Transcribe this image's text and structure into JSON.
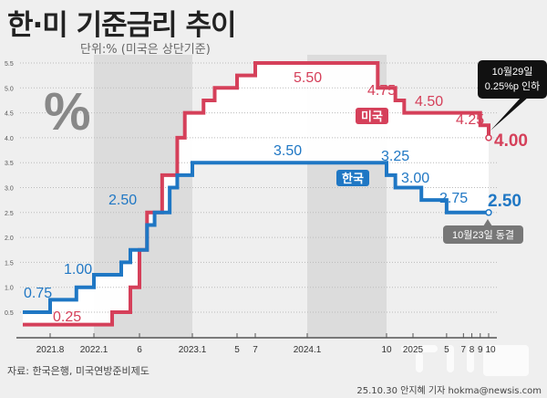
{
  "title": "한·미 기준금리 추이",
  "unit_note": "단위:% (미국은 상단기준)",
  "source": "자료: 한국은행, 미국연방준비제도",
  "credit": "25.10.30 안지혜 기자 hokma@newsis.com",
  "watermark": "뉴시스",
  "chart_data": {
    "type": "line",
    "step": true,
    "ylim": [
      0,
      5.5
    ],
    "yticks": [
      0.5,
      1.0,
      1.5,
      2.0,
      2.5,
      3.0,
      3.5,
      4.0,
      4.5,
      5.0,
      5.5
    ],
    "xtick_labels": [
      {
        "month": "2021.08",
        "label": "2021.8"
      },
      {
        "month": "2022.01",
        "label": "2022.1"
      },
      {
        "month": "2022.06",
        "label": "6"
      },
      {
        "month": "2023.01",
        "label": "2023.1"
      },
      {
        "month": "2023.05",
        "label": "5"
      },
      {
        "month": "2023.07",
        "label": "7"
      },
      {
        "month": "2024.01",
        "label": "2024.1"
      },
      {
        "month": "2024.10",
        "label": "10"
      },
      {
        "month": "2025.01",
        "label": "2025"
      },
      {
        "month": "2025.05",
        "label": "5"
      },
      {
        "month": "2025.07",
        "label": "7"
      },
      {
        "month": "2025.08",
        "label": "8"
      },
      {
        "month": "2025.09",
        "label": "9"
      },
      {
        "month": "2025.10",
        "label": "10"
      }
    ],
    "shaded_periods": [
      [
        "2022.01",
        "2023.01"
      ],
      [
        "2024.01",
        "2024.10"
      ]
    ],
    "series": [
      {
        "name": "미국",
        "color": "#d5405a",
        "points": [
          [
            "2021.05",
            0.25
          ],
          [
            "2022.03",
            0.5
          ],
          [
            "2022.05",
            1.0
          ],
          [
            "2022.06",
            1.75
          ],
          [
            "2022.07",
            2.5
          ],
          [
            "2022.09",
            3.25
          ],
          [
            "2022.11",
            4.0
          ],
          [
            "2022.12",
            4.5
          ],
          [
            "2023.02",
            4.75
          ],
          [
            "2023.03",
            5.0
          ],
          [
            "2023.05",
            5.25
          ],
          [
            "2023.07",
            5.5
          ],
          [
            "2024.09",
            5.0
          ],
          [
            "2024.11",
            4.75
          ],
          [
            "2024.12",
            4.5
          ],
          [
            "2025.09",
            4.25
          ],
          [
            "2025.10",
            4.0
          ]
        ]
      },
      {
        "name": "한국",
        "color": "#1f77c4",
        "points": [
          [
            "2021.05",
            0.5
          ],
          [
            "2021.08",
            0.75
          ],
          [
            "2021.11",
            1.0
          ],
          [
            "2022.01",
            1.25
          ],
          [
            "2022.04",
            1.5
          ],
          [
            "2022.05",
            1.75
          ],
          [
            "2022.07",
            2.25
          ],
          [
            "2022.08",
            2.5
          ],
          [
            "2022.10",
            3.0
          ],
          [
            "2022.11",
            3.25
          ],
          [
            "2023.01",
            3.5
          ],
          [
            "2024.10",
            3.25
          ],
          [
            "2024.11",
            3.0
          ],
          [
            "2025.02",
            2.75
          ],
          [
            "2025.05",
            2.5
          ],
          [
            "2025.10",
            2.5
          ]
        ]
      }
    ],
    "data_labels": [
      {
        "series": "한국",
        "text": "0.75"
      },
      {
        "series": "한국",
        "text": "1.00"
      },
      {
        "series": "한국",
        "text": "2.50"
      },
      {
        "series": "한국",
        "text": "3.50"
      },
      {
        "series": "한국",
        "text": "3.25"
      },
      {
        "series": "한국",
        "text": "3.00"
      },
      {
        "series": "한국",
        "text": "2.75"
      },
      {
        "series": "한국",
        "text": "2.50"
      },
      {
        "series": "미국",
        "text": "0.25"
      },
      {
        "series": "미국",
        "text": "5.50"
      },
      {
        "series": "미국",
        "text": "4.75"
      },
      {
        "series": "미국",
        "text": "4.50"
      },
      {
        "series": "미국",
        "text": "4.25"
      },
      {
        "series": "미국",
        "text": "4.00"
      }
    ],
    "annotations": {
      "us_callout": [
        "10월29일",
        "0.25%p 인하"
      ],
      "kr_callout": "10월23일 동결"
    }
  }
}
